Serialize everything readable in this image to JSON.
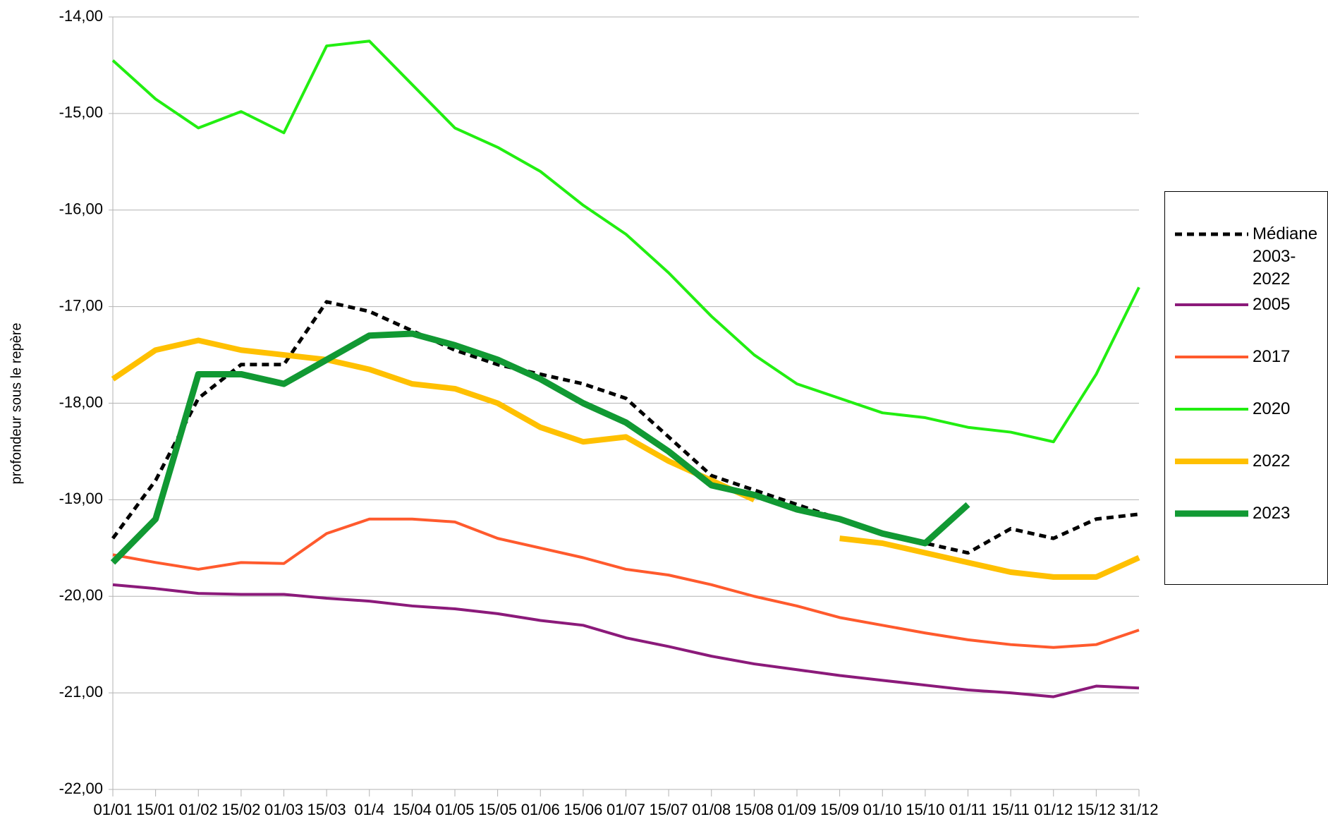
{
  "chart_data": {
    "type": "line",
    "y_label": "profondeur sous le repère",
    "categories": [
      "01/01",
      "15/01",
      "01/02",
      "15/02",
      "01/03",
      "15/03",
      "01/4",
      "15/04",
      "01/05",
      "15/05",
      "01/06",
      "15/06",
      "01/07",
      "15/07",
      "01/08",
      "15/08",
      "01/09",
      "15/09",
      "01/10",
      "15/10",
      "01/11",
      "15/11",
      "01/12",
      "15/12",
      "31/12"
    ],
    "ylim": [
      -22,
      -14
    ],
    "yticks": [
      {
        "value": -22,
        "label": "-22,00"
      },
      {
        "value": -21,
        "label": "-21,00"
      },
      {
        "value": -20,
        "label": "-20,00"
      },
      {
        "value": -19,
        "label": "-19,00"
      },
      {
        "value": -18,
        "label": "-18,00"
      },
      {
        "value": -17,
        "label": "-17,00"
      },
      {
        "value": -16,
        "label": "-16,00"
      },
      {
        "value": -15,
        "label": "-15,00"
      },
      {
        "value": -14,
        "label": "-14,00"
      }
    ],
    "grid": true,
    "legend": "right",
    "series": [
      {
        "name": "Médiane 2003-2022",
        "color": "#000000",
        "line_width": 5,
        "dashed": true,
        "values": [
          -19.4,
          -18.8,
          -17.95,
          -17.6,
          -17.6,
          -16.95,
          -17.05,
          -17.25,
          -17.45,
          -17.6,
          -17.7,
          -17.8,
          -17.95,
          -18.35,
          -18.75,
          -18.9,
          -19.05,
          -19.2,
          -19.35,
          -19.45,
          -19.55,
          -19.3,
          -19.4,
          -19.2,
          -19.15
        ]
      },
      {
        "name": "2005",
        "color": "#8b1a7a",
        "line_width": 4,
        "dashed": false,
        "values": [
          -19.88,
          -19.92,
          -19.97,
          -19.98,
          -19.98,
          -20.02,
          -20.05,
          -20.1,
          -20.13,
          -20.18,
          -20.25,
          -20.3,
          -20.43,
          -20.52,
          -20.62,
          -20.7,
          -20.76,
          -20.82,
          -20.87,
          -20.92,
          -20.97,
          -21.0,
          -21.04,
          -20.93,
          -20.95
        ]
      },
      {
        "name": "2017",
        "color": "#ff5a2d",
        "line_width": 4,
        "dashed": false,
        "values": [
          -19.57,
          -19.65,
          -19.72,
          -19.65,
          -19.66,
          -19.35,
          -19.2,
          -19.2,
          -19.23,
          -19.4,
          -19.5,
          -19.6,
          -19.72,
          -19.78,
          -19.88,
          -20.0,
          -20.1,
          -20.22,
          -20.3,
          -20.38,
          -20.45,
          -20.5,
          -20.53,
          -20.5,
          -20.35
        ]
      },
      {
        "name": "2020",
        "color": "#22ee11",
        "line_width": 4,
        "dashed": false,
        "values": [
          -14.45,
          -14.85,
          -15.15,
          -14.98,
          -15.2,
          -14.3,
          -14.25,
          -14.7,
          -15.15,
          -15.35,
          -15.6,
          -15.95,
          -16.25,
          -16.65,
          -17.1,
          -17.5,
          -17.8,
          -17.95,
          -18.1,
          -18.15,
          -18.25,
          -18.3,
          -18.4,
          -17.7,
          -16.8
        ]
      },
      {
        "name": "2022",
        "color": "#ffc000",
        "line_width": 8,
        "dashed": false,
        "values": [
          -17.75,
          -17.45,
          -17.35,
          -17.45,
          -17.5,
          -17.55,
          -17.65,
          -17.8,
          -17.85,
          -18.0,
          -18.25,
          -18.4,
          -18.35,
          -18.6,
          -18.8,
          -19.0,
          null,
          -19.4,
          -19.45,
          -19.55,
          -19.65,
          -19.75,
          -19.8,
          -19.8,
          -19.6
        ]
      },
      {
        "name": "2023",
        "color": "#119933",
        "line_width": 9,
        "dashed": false,
        "values": [
          -19.65,
          -19.2,
          -17.7,
          -17.7,
          -17.8,
          -17.55,
          -17.3,
          -17.28,
          -17.4,
          -17.55,
          -17.75,
          -18.0,
          -18.2,
          -18.5,
          -18.85,
          -18.95,
          -19.1,
          -19.2,
          -19.35,
          -19.45,
          -19.05,
          null,
          null,
          null,
          null
        ]
      }
    ]
  }
}
